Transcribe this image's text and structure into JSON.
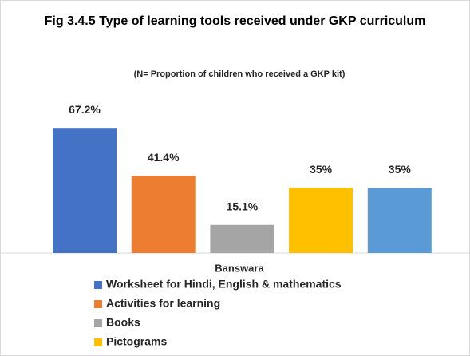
{
  "chart_data": {
    "type": "bar",
    "title": "Fig 3.4.5 Type of learning tools received under GKP curriculum",
    "subtitle": "(N= Proportion of children who received a GKP kit)",
    "categories": [
      "Banswara"
    ],
    "series": [
      {
        "name": "Worksheet for Hindi, English & mathematics",
        "color": "#4472c4",
        "values": [
          67.2
        ],
        "value_labels": [
          "67.2%"
        ]
      },
      {
        "name": "Activities for learning",
        "color": "#ed7d31",
        "values": [
          41.4
        ],
        "value_labels": [
          "41.4%"
        ]
      },
      {
        "name": "Books",
        "color": "#a5a5a5",
        "values": [
          15.1
        ],
        "value_labels": [
          "15.1%"
        ]
      },
      {
        "name": "Pictograms",
        "color": "#ffc000",
        "values": [
          35
        ],
        "value_labels": [
          "35%"
        ]
      },
      {
        "color": "#5b9bd5",
        "values": [
          35
        ],
        "value_labels": [
          "35%"
        ]
      }
    ],
    "ylim": [
      0,
      75
    ]
  }
}
